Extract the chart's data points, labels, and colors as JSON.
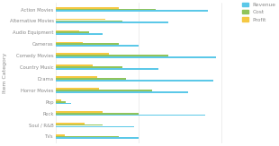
{
  "categories": [
    "Action Movies",
    "Alternative Movies",
    "Audio Equipment",
    "Cameras",
    "Comedy Movies",
    "Country Music",
    "Drama",
    "Horror Movies",
    "Pop",
    "Rock",
    "Soul / R&B",
    "TVs"
  ],
  "revenue": [
    0.92,
    0.68,
    0.28,
    0.5,
    0.97,
    0.62,
    0.95,
    0.8,
    0.09,
    0.9,
    0.47,
    0.5
  ],
  "cost": [
    0.6,
    0.4,
    0.2,
    0.38,
    0.68,
    0.4,
    0.42,
    0.58,
    0.06,
    0.5,
    0.28,
    0.38
  ],
  "profit": [
    0.38,
    0.3,
    0.14,
    0.16,
    0.32,
    0.22,
    0.25,
    0.26,
    0.03,
    0.28,
    0.17,
    0.05
  ],
  "color_revenue": "#5bc8e8",
  "color_cost": "#91c45a",
  "color_profit": "#f5c842",
  "ylabel": "Item Category",
  "legend_labels": [
    "Revenue",
    "Cost",
    "Profit"
  ],
  "bar_height": 0.13,
  "bar_gap": 0.14,
  "xlim": [
    0,
    1.1
  ],
  "bg_color": "#ffffff",
  "text_color": "#888888"
}
